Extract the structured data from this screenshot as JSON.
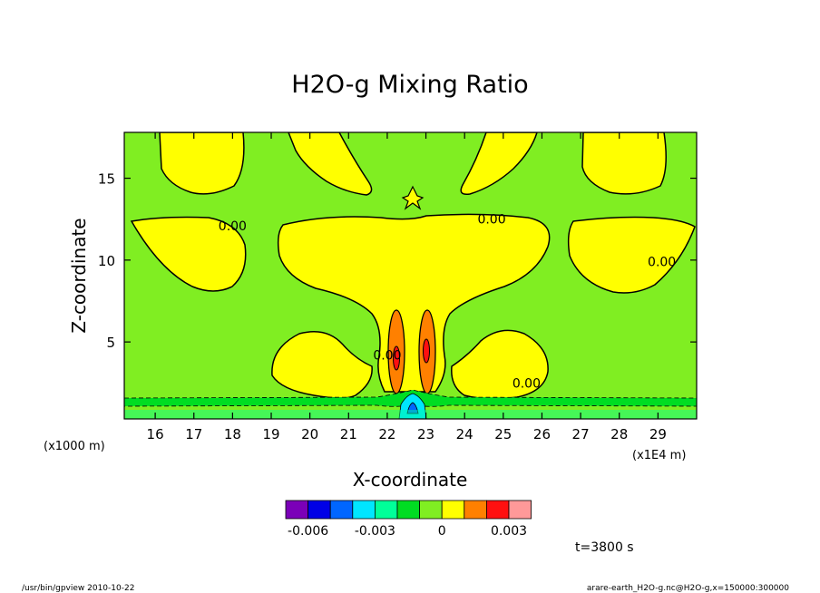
{
  "chart_data": {
    "type": "heatmap",
    "title": "H2O-g Mixing Ratio",
    "xlabel": "X-coordinate",
    "ylabel": "Z-coordinate",
    "x_unit_label": "(x1E4 m)",
    "y_unit_label": "(x1000 m)",
    "xlim": [
      15.2,
      30.0
    ],
    "ylim": [
      0.3,
      17.8
    ],
    "x_ticks": [
      16,
      17,
      18,
      19,
      20,
      21,
      22,
      23,
      24,
      25,
      26,
      27,
      28,
      29
    ],
    "y_ticks": [
      5,
      10,
      15
    ],
    "grid": false,
    "contour_labels": [
      {
        "text": "0.00",
        "x": 18.0,
        "z": 12.1
      },
      {
        "text": "0.00",
        "x": 24.7,
        "z": 12.5
      },
      {
        "text": "0.00",
        "x": 29.1,
        "z": 9.9
      },
      {
        "text": "0.00",
        "x": 25.6,
        "z": 2.5
      },
      {
        "text": "0.00",
        "x": 22.0,
        "z": 4.2
      }
    ],
    "colorbar": {
      "colors": [
        "#7b00b8",
        "#0000e6",
        "#0066ff",
        "#00e6ff",
        "#00ff99",
        "#00dd22",
        "#80ee22",
        "#ffff00",
        "#ff8000",
        "#ff1010",
        "#ff9999"
      ],
      "tick_labels": [
        "-0.006",
        "-0.003",
        "0",
        "0.003"
      ]
    },
    "time_label": "t=3800 s",
    "footer_left": "/usr/bin/gpview  2010-10-22",
    "footer_right": "arare-earth_H2O-g.nc@H2O-g,x=150000:300000"
  }
}
